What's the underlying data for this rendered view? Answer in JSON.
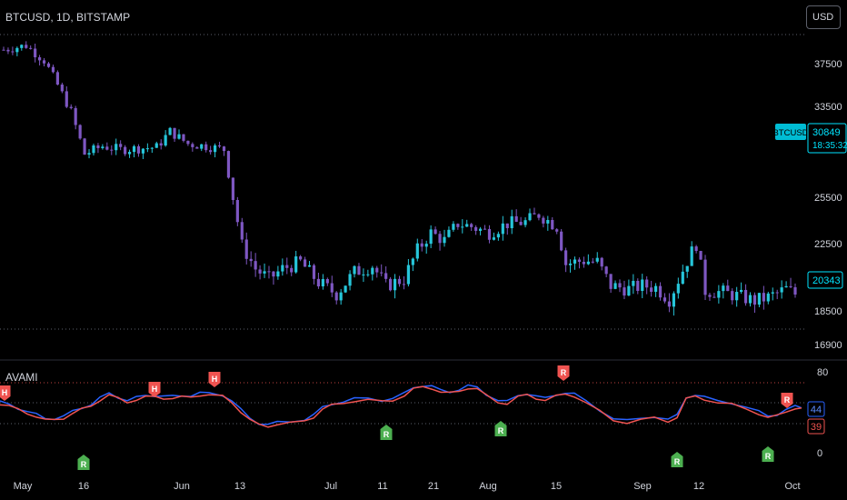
{
  "header": {
    "symbol_label": "BTCUSD, 1D, BITSTAMP",
    "currency_button": "USD"
  },
  "indicator": {
    "title": "AVAMI"
  },
  "colors": {
    "bull": "#26c6da",
    "bear": "#7e57c2",
    "blue_line": "#2962ff",
    "red_line": "#ef5350",
    "up_marker": "#ef5350",
    "down_marker": "#4caf50",
    "axis_text": "#d1d4dc",
    "grid_dotted": "#5d606b",
    "last_price_box": "#00e5ff"
  },
  "price_axis": {
    "ticks": [
      "37500",
      "33500",
      "25500",
      "22500",
      "18500",
      "16900"
    ]
  },
  "indicator_axis": {
    "ticks": [
      "80",
      "0"
    ]
  },
  "time_axis": {
    "ticks": [
      "May",
      "16",
      "Jun",
      "13",
      "Jul",
      "11",
      "21",
      "Aug",
      "15",
      "Sep",
      "12",
      "Oct"
    ]
  },
  "price_labels": {
    "symbol_tag": "BTCUSD",
    "symbol_price": "30849",
    "countdown": "18:35:32",
    "last_price": "20343"
  },
  "indicator_labels": {
    "blue_value": "44",
    "red_value": "39"
  },
  "chart_data": [
    {
      "type": "candlestick",
      "title": "BTCUSD, 1D, BITSTAMP",
      "y_ticks": [
        37500,
        33500,
        25500,
        22500,
        18500,
        16900
      ],
      "x_ticks": [
        "May",
        "16",
        "Jun",
        "13",
        "Jul",
        "11",
        "21",
        "Aug",
        "15",
        "Sep",
        "12",
        "Oct"
      ],
      "last_price": 20343,
      "x_index": [
        0,
        14,
        28,
        42,
        56,
        70,
        84,
        98,
        112,
        126,
        140,
        154
      ],
      "close": [
        38500,
        29300,
        30200,
        22400,
        19300,
        20200,
        23500,
        23500,
        20200,
        19800,
        22300,
        19300
      ]
    },
    {
      "type": "line",
      "title": "AVAMI",
      "y_ticks": [
        80,
        0
      ],
      "x": [
        0,
        10,
        20,
        30,
        40,
        50,
        60,
        70,
        80,
        90,
        100,
        110,
        120,
        130,
        140,
        150,
        156
      ],
      "series": [
        {
          "values": [
            52,
            42,
            38,
            50,
            58,
            52,
            25,
            36,
            58,
            64,
            62,
            50,
            65,
            46,
            60,
            28,
            44
          ]
        },
        {
          "values": [
            50,
            44,
            40,
            48,
            56,
            54,
            27,
            34,
            56,
            66,
            60,
            52,
            62,
            48,
            57,
            30,
            39
          ]
        }
      ],
      "markers": [
        {
          "label": "H",
          "kind": "top"
        },
        {
          "label": "R",
          "kind": "bottom"
        },
        {
          "label": "H",
          "kind": "top"
        },
        {
          "label": "H",
          "kind": "top"
        },
        {
          "label": "R",
          "kind": "bottom"
        },
        {
          "label": "R",
          "kind": "bottom"
        },
        {
          "label": "R",
          "kind": "top"
        },
        {
          "label": "R",
          "kind": "bottom"
        },
        {
          "label": "R",
          "kind": "bottom"
        },
        {
          "label": "R",
          "kind": "top"
        }
      ]
    }
  ]
}
